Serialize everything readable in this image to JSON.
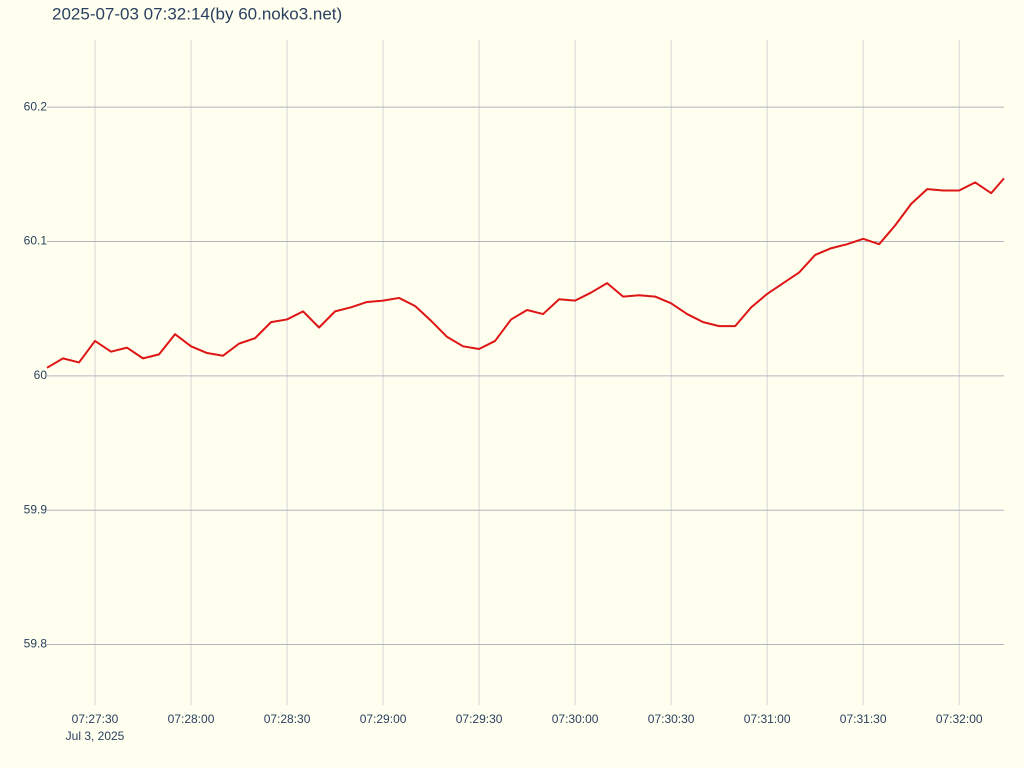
{
  "chart_data": {
    "type": "line",
    "title": "2025-07-03 07:32:14(by 60.noko3.net)",
    "x": [
      "2025-07-03 07:27:15",
      "2025-07-03 07:27:20",
      "2025-07-03 07:27:25",
      "2025-07-03 07:27:30",
      "2025-07-03 07:27:35",
      "2025-07-03 07:27:40",
      "2025-07-03 07:27:45",
      "2025-07-03 07:27:50",
      "2025-07-03 07:27:55",
      "2025-07-03 07:28:00",
      "2025-07-03 07:28:05",
      "2025-07-03 07:28:10",
      "2025-07-03 07:28:15",
      "2025-07-03 07:28:20",
      "2025-07-03 07:28:25",
      "2025-07-03 07:28:30",
      "2025-07-03 07:28:35",
      "2025-07-03 07:28:40",
      "2025-07-03 07:28:45",
      "2025-07-03 07:28:50",
      "2025-07-03 07:28:55",
      "2025-07-03 07:29:00",
      "2025-07-03 07:29:05",
      "2025-07-03 07:29:10",
      "2025-07-03 07:29:15",
      "2025-07-03 07:29:20",
      "2025-07-03 07:29:25",
      "2025-07-03 07:29:30",
      "2025-07-03 07:29:35",
      "2025-07-03 07:29:40",
      "2025-07-03 07:29:45",
      "2025-07-03 07:29:50",
      "2025-07-03 07:29:55",
      "2025-07-03 07:30:00",
      "2025-07-03 07:30:05",
      "2025-07-03 07:30:10",
      "2025-07-03 07:30:15",
      "2025-07-03 07:30:20",
      "2025-07-03 07:30:25",
      "2025-07-03 07:30:30",
      "2025-07-03 07:30:35",
      "2025-07-03 07:30:40",
      "2025-07-03 07:30:45",
      "2025-07-03 07:30:50",
      "2025-07-03 07:30:55",
      "2025-07-03 07:31:00",
      "2025-07-03 07:31:05",
      "2025-07-03 07:31:10",
      "2025-07-03 07:31:15",
      "2025-07-03 07:31:20",
      "2025-07-03 07:31:25",
      "2025-07-03 07:31:30",
      "2025-07-03 07:31:35",
      "2025-07-03 07:31:40",
      "2025-07-03 07:31:45",
      "2025-07-03 07:31:50",
      "2025-07-03 07:31:55",
      "2025-07-03 07:32:00",
      "2025-07-03 07:32:05",
      "2025-07-03 07:32:10",
      "2025-07-03 07:32:14"
    ],
    "series": [
      {
        "color": "#dd1515",
        "values": [
          60.006,
          60.013,
          60.01,
          60.026,
          60.018,
          60.021,
          60.013,
          60.016,
          60.031,
          60.022,
          60.017,
          60.015,
          60.024,
          60.028,
          60.04,
          60.042,
          60.048,
          60.036,
          60.048,
          60.051,
          60.055,
          60.056,
          60.058,
          60.052,
          60.041,
          60.029,
          60.022,
          60.02,
          60.026,
          60.042,
          60.049,
          60.046,
          60.057,
          60.056,
          60.062,
          60.069,
          60.059,
          60.06,
          60.059,
          60.054,
          60.046,
          60.04,
          60.037,
          60.037,
          60.051,
          60.061,
          60.069,
          60.077,
          60.09,
          60.095,
          60.098,
          60.102,
          60.098,
          60.112,
          60.128,
          60.139,
          60.138,
          60.138,
          60.144,
          60.136,
          60.147
        ]
      }
    ],
    "xlim": [
      "2025-07-03 07:27:15",
      "2025-07-03 07:32:14"
    ],
    "xticks": [
      {
        "value": "2025-07-03 07:27:30",
        "label": "07:27:30"
      },
      {
        "value": "2025-07-03 07:28:00",
        "label": "07:28:00"
      },
      {
        "value": "2025-07-03 07:28:30",
        "label": "07:28:30"
      },
      {
        "value": "2025-07-03 07:29:00",
        "label": "07:29:00"
      },
      {
        "value": "2025-07-03 07:29:30",
        "label": "07:29:30"
      },
      {
        "value": "2025-07-03 07:30:00",
        "label": "07:30:00"
      },
      {
        "value": "2025-07-03 07:30:30",
        "label": "07:30:30"
      },
      {
        "value": "2025-07-03 07:31:00",
        "label": "07:31:00"
      },
      {
        "value": "2025-07-03 07:31:30",
        "label": "07:31:30"
      },
      {
        "value": "2025-07-03 07:32:00",
        "label": "07:32:00"
      }
    ],
    "x_date_label": "Jul 3, 2025",
    "ylim": [
      59.755,
      60.25
    ],
    "yticks": [
      59.8,
      59.9,
      60,
      60.1,
      60.2
    ],
    "grid": true
  }
}
